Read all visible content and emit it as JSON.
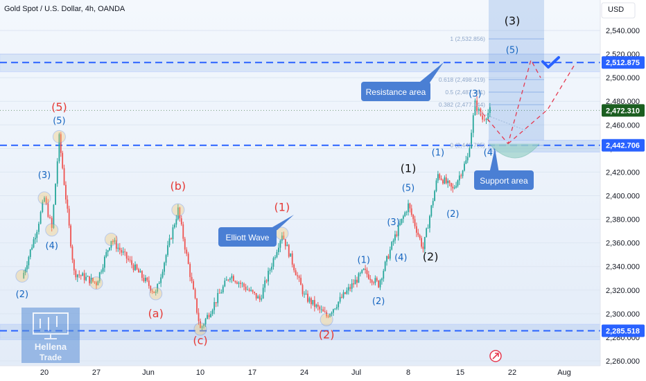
{
  "title": "Gold Spot / U.S. Dollar, 4h, OANDA",
  "currency": "USD",
  "chart_data": {
    "type": "candlestick",
    "symbol": "Gold Spot / U.S. Dollar",
    "interval": "4h",
    "source": "OANDA",
    "y_ticks": [
      2540,
      2520,
      2500,
      2480,
      2460,
      2440,
      2420,
      2400,
      2380,
      2360,
      2340,
      2320,
      2300,
      2280,
      2260
    ],
    "y_tick_labels": [
      "2,540.000",
      "2,520.000",
      "2,500.000",
      "2,480.000",
      "2,460.000",
      "2,440.000",
      "2,420.000",
      "2,400.000",
      "2,380.000",
      "2,360.000",
      "2,340.000",
      "2,320.000",
      "2,300.000",
      "2,280.000",
      "2,260.000"
    ],
    "x_tick_labels": [
      "20",
      "27",
      "Jun",
      "10",
      "17",
      "24",
      "Jul",
      "8",
      "15",
      "22",
      "Aug"
    ],
    "ylim": [
      2256,
      2549
    ],
    "price_path": [
      {
        "x": "May 17",
        "y": 2330
      },
      {
        "x": "May 19",
        "y": 2372
      },
      {
        "x": "May 20",
        "y": 2398
      },
      {
        "x": "May 21",
        "y": 2372
      },
      {
        "x": "May 22",
        "y": 2449
      },
      {
        "x": "May 24",
        "y": 2335
      },
      {
        "x": "May 27",
        "y": 2326
      },
      {
        "x": "May 29",
        "y": 2363
      },
      {
        "x": "Jun 4",
        "y": 2317
      },
      {
        "x": "Jun 7",
        "y": 2388
      },
      {
        "x": "Jun 10",
        "y": 2287
      },
      {
        "x": "Jun 14",
        "y": 2333
      },
      {
        "x": "Jun 18",
        "y": 2312
      },
      {
        "x": "Jun 21",
        "y": 2368
      },
      {
        "x": "Jun 24",
        "y": 2315
      },
      {
        "x": "Jun 27",
        "y": 2298
      },
      {
        "x": "Jul 2",
        "y": 2336
      },
      {
        "x": "Jul 4",
        "y": 2325
      },
      {
        "x": "Jul 6",
        "y": 2362
      },
      {
        "x": "Jul 8",
        "y": 2392
      },
      {
        "x": "Jul 10",
        "y": 2355
      },
      {
        "x": "Jul 12",
        "y": 2418
      },
      {
        "x": "Jul 14",
        "y": 2405
      },
      {
        "x": "Jul 16",
        "y": 2432
      },
      {
        "x": "Jul 17",
        "y": 2478
      },
      {
        "x": "Jul 18",
        "y": 2465
      },
      {
        "x": "Jul 19",
        "y": 2472
      }
    ],
    "last_price": "2,472.310",
    "price_tags": [
      {
        "label": "2,512.875",
        "value": 2512.875,
        "color": "#2962ff"
      },
      {
        "label": "2,472.310",
        "value": 2472.31,
        "color": "#1b5e20"
      },
      {
        "label": "2,442.706",
        "value": 2442.706,
        "color": "#2962ff"
      },
      {
        "label": "2,285.518",
        "value": 2285.518,
        "color": "#2962ff"
      }
    ],
    "fib_levels": [
      {
        "label": "1 (2,532.856)",
        "value": 2532.856
      },
      {
        "label": "0.618 (2,498.419)",
        "value": 2498.419
      },
      {
        "label": "0.5 (2,487.781)",
        "value": 2487.781
      },
      {
        "label": "0.382 (2,477.144)",
        "value": 2477.144
      },
      {
        "label": "0 (2,442.705)",
        "value": 2442.705
      }
    ],
    "wave_labels": [
      {
        "text": "(5)",
        "color": "#e53935",
        "x": "May 22",
        "y": 2472
      },
      {
        "text": "(5)",
        "color": "#1565c0",
        "x": "May 22",
        "y": 2461
      },
      {
        "text": "(3)",
        "color": "#1565c0",
        "x": "May 20",
        "y": 2415
      },
      {
        "text": "(4)",
        "color": "#1565c0",
        "x": "May 21",
        "y": 2355
      },
      {
        "text": "(2)",
        "color": "#1565c0",
        "x": "May 17",
        "y": 2314
      },
      {
        "text": "(b)",
        "color": "#e53935",
        "x": "Jun 7",
        "y": 2405
      },
      {
        "text": "(a)",
        "color": "#e53935",
        "x": "Jun 4",
        "y": 2297
      },
      {
        "text": "(c)",
        "color": "#e53935",
        "x": "Jun 10",
        "y": 2274
      },
      {
        "text": "(1)",
        "color": "#e53935",
        "x": "Jun 21",
        "y": 2387
      },
      {
        "text": "(2)",
        "color": "#e53935",
        "x": "Jun 27",
        "y": 2279
      },
      {
        "text": "(1)",
        "color": "#1565c0",
        "x": "Jul 2",
        "y": 2343
      },
      {
        "text": "(2)",
        "color": "#1565c0",
        "x": "Jul 4",
        "y": 2308
      },
      {
        "text": "(3)",
        "color": "#1565c0",
        "x": "Jul 6",
        "y": 2375
      },
      {
        "text": "(4)",
        "color": "#1565c0",
        "x": "Jul 7",
        "y": 2345
      },
      {
        "text": "(5)",
        "color": "#1565c0",
        "x": "Jul 8",
        "y": 2404
      },
      {
        "text": "(1)",
        "color": "#111111",
        "x": "Jul 8",
        "y": 2420
      },
      {
        "text": "(2)",
        "color": "#111111",
        "x": "Jul 11",
        "y": 2345
      },
      {
        "text": "(1)",
        "color": "#1565c0",
        "x": "Jul 12",
        "y": 2434
      },
      {
        "text": "(2)",
        "color": "#1565c0",
        "x": "Jul 14",
        "y": 2382
      },
      {
        "text": "(3)",
        "color": "#1565c0",
        "x": "Jul 17",
        "y": 2484
      },
      {
        "text": "(4)",
        "color": "#1565c0",
        "x": "Jul 19",
        "y": 2434
      },
      {
        "text": "(5)",
        "color": "#1565c0",
        "x": "Jul 22",
        "y": 2521
      },
      {
        "text": "(3)",
        "color": "#111111",
        "x": "Jul 22",
        "y": 2545
      }
    ],
    "zones": [
      {
        "name": "Resistance area",
        "from": 2505,
        "to": 2520
      },
      {
        "name": "Support area",
        "from": 2437,
        "to": 2447
      },
      {
        "name": "Bottom support",
        "from": 2278,
        "to": 2291
      }
    ]
  },
  "annotations": {
    "resistance_label": "Resistance area",
    "support_label": "Support area",
    "elliott_label": "Elliott Wave"
  },
  "watermark": {
    "line1": "Hellena",
    "line2": "Trade"
  },
  "colors": {
    "up": "#26a69a",
    "down": "#ef5350",
    "accent": "#2962ff",
    "callout_bg": "#4a7fd4",
    "wave_red": "#e53935",
    "wave_blue": "#1565c0",
    "projection": "#e53950"
  }
}
